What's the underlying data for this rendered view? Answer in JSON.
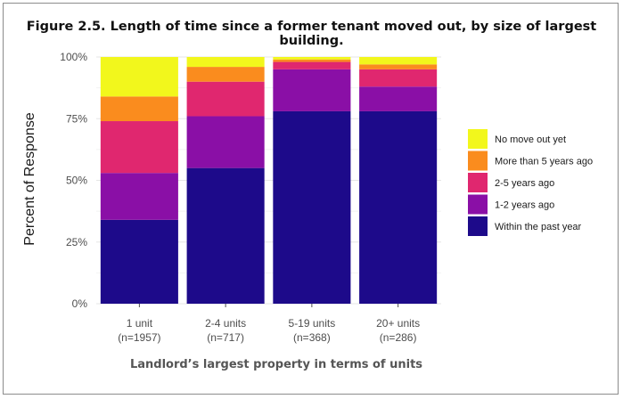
{
  "chart_data": {
    "type": "bar",
    "stacked": true,
    "percent": true,
    "title": "Figure 2.5. Length of time since a former tenant moved out, by size of largest building.",
    "xlabel": "Landlord’s largest property in terms of units",
    "ylabel": "Percent of Response",
    "ylim": [
      0,
      100
    ],
    "yticks": [
      "0%",
      "25%",
      "50%",
      "75%",
      "100%"
    ],
    "ytick_values": [
      0,
      25,
      50,
      75,
      100
    ],
    "categories": [
      {
        "label": "1 unit",
        "n": "(n=1957)"
      },
      {
        "label": "2-4 units",
        "n": "(n=717)"
      },
      {
        "label": "5-19 units",
        "n": "(n=368)"
      },
      {
        "label": "20+ units",
        "n": "(n=286)"
      }
    ],
    "series": [
      {
        "name": "Within the past year",
        "color": "#1d0a8a",
        "values": [
          34,
          55,
          78,
          78
        ]
      },
      {
        "name": "1-2 years ago",
        "color": "#8a0fa6",
        "values": [
          19,
          21,
          17,
          10
        ]
      },
      {
        "name": "2-5 years ago",
        "color": "#e0276f",
        "values": [
          21,
          14,
          3,
          7
        ]
      },
      {
        "name": "More than 5 years ago",
        "color": "#fa8c1e",
        "values": [
          10,
          6,
          1,
          2
        ]
      },
      {
        "name": "No move out yet",
        "color": "#f2f71c",
        "values": [
          16,
          4,
          1,
          3
        ]
      }
    ],
    "legend_order": [
      4,
      3,
      2,
      1,
      0
    ],
    "legend_position": "right",
    "grid": true
  }
}
